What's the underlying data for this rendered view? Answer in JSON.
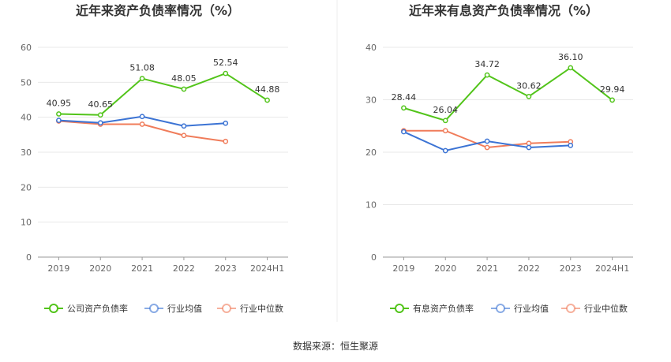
{
  "source_text": "数据来源：恒生聚源",
  "chart_data": [
    {
      "type": "line",
      "title": "近年来资产负债率情况（%）",
      "categories": [
        "2019",
        "2020",
        "2021",
        "2022",
        "2023",
        "2024H1"
      ],
      "ylim": [
        0,
        60
      ],
      "yticks": [
        0,
        10,
        20,
        30,
        40,
        50,
        60
      ],
      "grid": true,
      "legend_position": "bottom",
      "series": [
        {
          "name": "公司资产负债率",
          "color": "#52c41a",
          "values": [
            40.95,
            40.65,
            51.08,
            48.05,
            52.54,
            44.88
          ],
          "labels": [
            "40.95",
            "40.65",
            "51.08",
            "48.05",
            "52.54",
            "44.88"
          ]
        },
        {
          "name": "行业均值",
          "color": "#3b73d4",
          "values": [
            39.1,
            38.4,
            40.2,
            37.5,
            38.3,
            null
          ]
        },
        {
          "name": "行业中位数",
          "color": "#f07c5a",
          "values": [
            38.9,
            38.0,
            38.0,
            34.8,
            33.1,
            null
          ]
        }
      ]
    },
    {
      "type": "line",
      "title": "近年来有息资产负债率情况（%）",
      "categories": [
        "2019",
        "2020",
        "2021",
        "2022",
        "2023",
        "2024H1"
      ],
      "ylim": [
        0,
        40
      ],
      "yticks": [
        0,
        10,
        20,
        30,
        40
      ],
      "grid": true,
      "legend_position": "bottom",
      "series": [
        {
          "name": "有息资产负债率",
          "color": "#52c41a",
          "values": [
            28.44,
            26.04,
            34.72,
            30.62,
            36.1,
            29.94
          ],
          "labels": [
            "28.44",
            "26.04",
            "34.72",
            "30.62",
            "36.10",
            "29.94"
          ]
        },
        {
          "name": "行业均值",
          "color": "#3b73d4",
          "values": [
            23.9,
            20.3,
            22.1,
            20.9,
            21.3,
            null
          ]
        },
        {
          "name": "行业中位数",
          "color": "#f07c5a",
          "values": [
            24.1,
            24.1,
            20.9,
            21.7,
            22.0,
            null
          ]
        }
      ]
    }
  ]
}
